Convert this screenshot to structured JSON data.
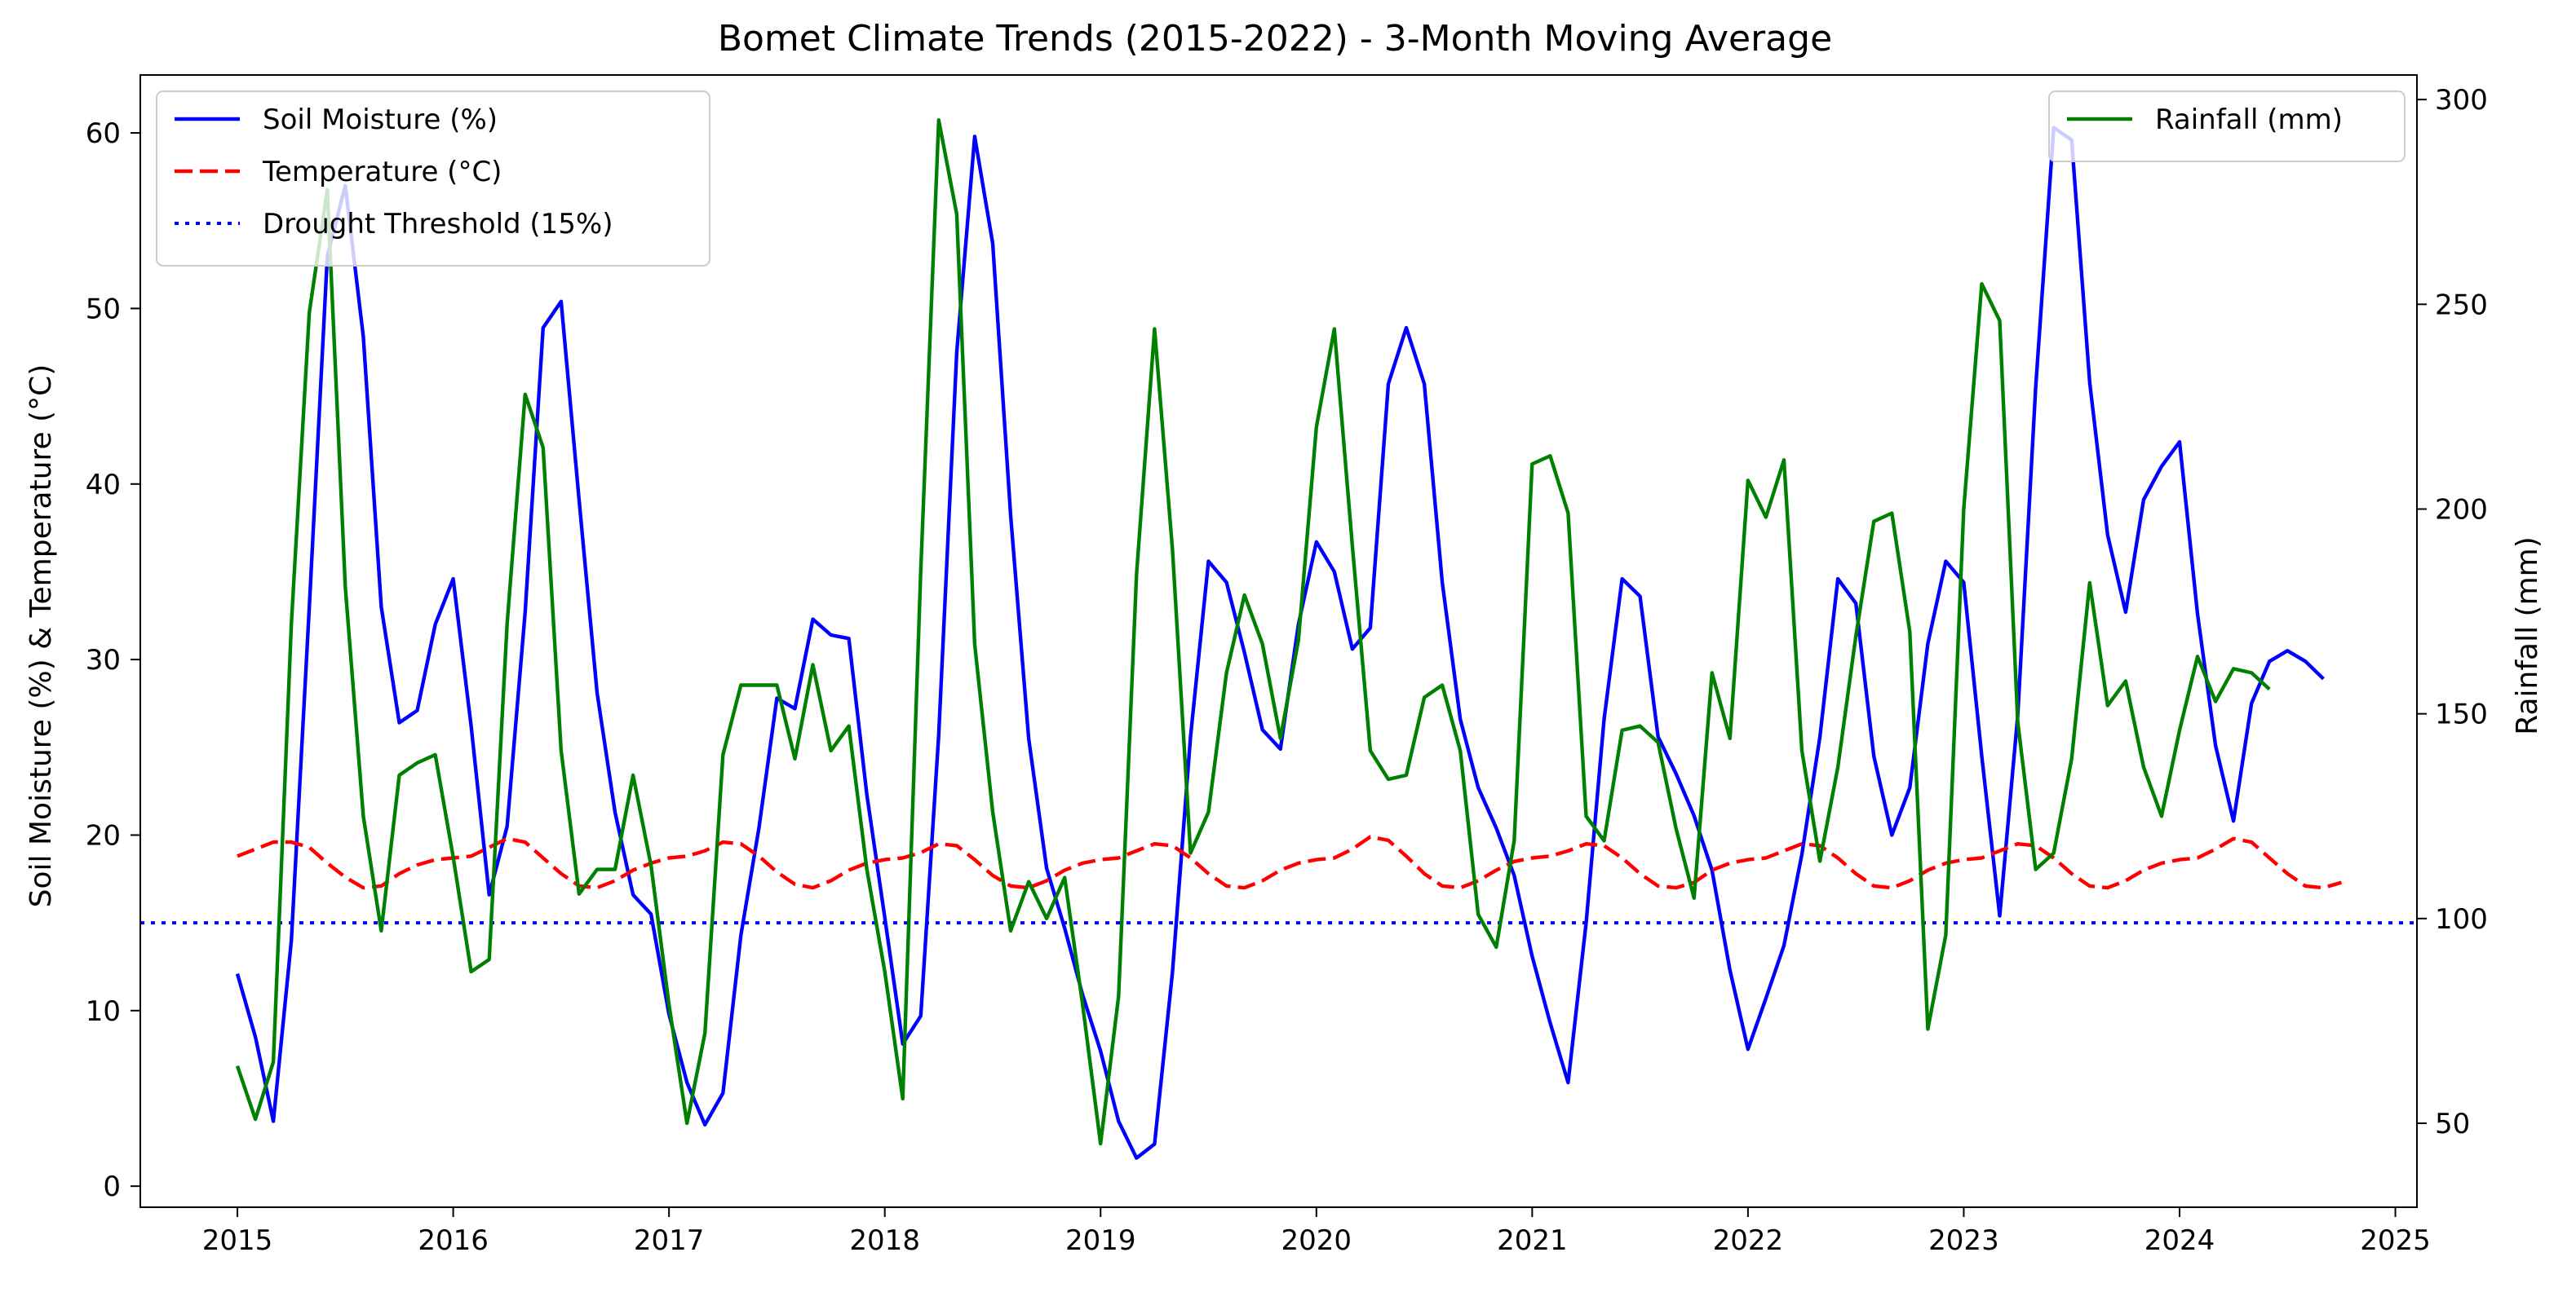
{
  "chart_data": {
    "type": "line",
    "title": "Bomet Climate Trends (2015-2022) - 3-Month Moving Average",
    "xlabel": "",
    "ylabel_left": "Soil Moisture (%) & Temperature (°C)",
    "ylabel_right": "Rainfall (mm)",
    "x_start": "2015-01",
    "x_interval": "month",
    "xlim": [
      2014.55,
      2025.1
    ],
    "ylim_left": [
      -1.2,
      63.3
    ],
    "ylim_right": [
      29.5,
      306
    ],
    "x_ticks": [
      2015,
      2016,
      2017,
      2018,
      2019,
      2020,
      2021,
      2022,
      2023,
      2024,
      2025
    ],
    "y_ticks_left": [
      0,
      10,
      20,
      30,
      40,
      50,
      60
    ],
    "y_ticks_right": [
      50,
      100,
      150,
      200,
      250,
      300
    ],
    "grid": false,
    "legend_left": "upper-left",
    "legend_right": "upper-right",
    "series": [
      {
        "name": "Soil Moisture (%)",
        "axis": "left",
        "color": "#0000ff",
        "style": "solid",
        "values": [
          12.1,
          8.5,
          3.7,
          14.0,
          33.0,
          53.0,
          57.0,
          48.4,
          33.0,
          26.4,
          27.1,
          32.0,
          34.6,
          26.2,
          16.6,
          20.5,
          32.7,
          48.9,
          50.4,
          39.1,
          28.1,
          21.3,
          16.6,
          15.5,
          9.8,
          5.9,
          3.5,
          5.3,
          14.3,
          20.4,
          27.8,
          27.2,
          32.3,
          31.4,
          31.2,
          22.3,
          15.3,
          8.1,
          9.7,
          25.7,
          47.5,
          59.8,
          53.7,
          38.2,
          25.5,
          18.1,
          14.7,
          10.9,
          7.7,
          3.7,
          1.6,
          2.4,
          12.2,
          25.6,
          35.6,
          34.4,
          30.4,
          26.0,
          24.9,
          32.0,
          36.7,
          35.0,
          30.6,
          31.8,
          45.7,
          48.9,
          45.7,
          34.4,
          26.6,
          22.7,
          20.4,
          17.7,
          13.1,
          9.3,
          5.9,
          15.0,
          26.6,
          34.6,
          33.6,
          25.6,
          23.5,
          21.1,
          18.0,
          12.3,
          7.8,
          10.7,
          13.7,
          18.9,
          25.6,
          34.6,
          33.2,
          24.5,
          20.0,
          22.7,
          30.9,
          35.6,
          34.4,
          24.5,
          15.4,
          26.8,
          45.5,
          60.3,
          59.6,
          45.8,
          37.1,
          32.7,
          39.1,
          41.0,
          42.4,
          32.6,
          25.1,
          20.8,
          27.5,
          29.9,
          30.5,
          29.9,
          28.9
        ]
      },
      {
        "name": "Temperature (°C)",
        "axis": "left",
        "color": "#ff0000",
        "style": "dashed",
        "values": [
          18.8,
          19.2,
          19.6,
          19.6,
          19.3,
          18.4,
          17.6,
          17.0,
          17.1,
          17.8,
          18.3,
          18.6,
          18.7,
          18.8,
          19.3,
          19.8,
          19.6,
          18.7,
          17.8,
          17.1,
          17.0,
          17.4,
          18.0,
          18.4,
          18.7,
          18.8,
          19.1,
          19.6,
          19.5,
          18.8,
          17.9,
          17.2,
          17.0,
          17.4,
          18.0,
          18.4,
          18.6,
          18.7,
          19.0,
          19.5,
          19.4,
          18.6,
          17.7,
          17.1,
          17.0,
          17.4,
          18.0,
          18.4,
          18.6,
          18.7,
          19.1,
          19.5,
          19.4,
          18.7,
          17.8,
          17.1,
          17.0,
          17.4,
          18.0,
          18.4,
          18.6,
          18.7,
          19.2,
          19.9,
          19.7,
          18.8,
          17.8,
          17.1,
          17.0,
          17.4,
          18.0,
          18.5,
          18.7,
          18.8,
          19.1,
          19.5,
          19.4,
          18.7,
          17.8,
          17.1,
          17.0,
          17.3,
          18.0,
          18.4,
          18.6,
          18.7,
          19.1,
          19.5,
          19.4,
          18.7,
          17.8,
          17.1,
          17.0,
          17.4,
          18.0,
          18.4,
          18.6,
          18.7,
          19.1,
          19.5,
          19.4,
          18.7,
          17.8,
          17.1,
          17.0,
          17.4,
          18.0,
          18.4,
          18.6,
          18.7,
          19.2,
          19.8,
          19.6,
          18.7,
          17.8,
          17.1,
          17.0,
          17.3
        ]
      },
      {
        "name": "Drought Threshold (15%)",
        "axis": "left",
        "color": "#0000ff",
        "style": "dotted",
        "constant": 15
      },
      {
        "name": "Rainfall (mm)",
        "axis": "right",
        "color": "#008000",
        "style": "solid",
        "values": [
          64,
          51,
          65,
          172,
          248,
          278,
          181,
          125,
          97,
          135,
          138,
          140,
          115,
          87,
          90,
          172,
          228,
          215,
          141,
          106,
          112,
          112,
          135,
          113,
          79,
          50,
          72,
          140,
          157,
          157,
          157,
          139,
          162,
          141,
          147,
          112,
          87,
          56,
          185,
          295,
          272,
          167,
          126,
          97,
          109,
          100,
          110,
          79,
          45,
          81,
          184,
          244,
          190,
          116,
          126,
          160,
          179,
          167,
          144,
          168,
          220,
          244,
          191,
          141,
          134,
          135,
          154,
          157,
          141,
          101,
          93,
          119,
          211,
          213,
          199,
          125,
          119,
          146,
          147,
          143,
          122,
          105,
          160,
          144,
          207,
          198,
          212,
          141,
          114,
          137,
          169,
          197,
          199,
          170,
          73,
          96,
          200,
          255,
          246,
          148,
          112,
          116,
          139,
          182,
          152,
          158,
          137,
          125,
          146,
          164,
          153,
          161,
          160,
          156
        ]
      }
    ]
  }
}
